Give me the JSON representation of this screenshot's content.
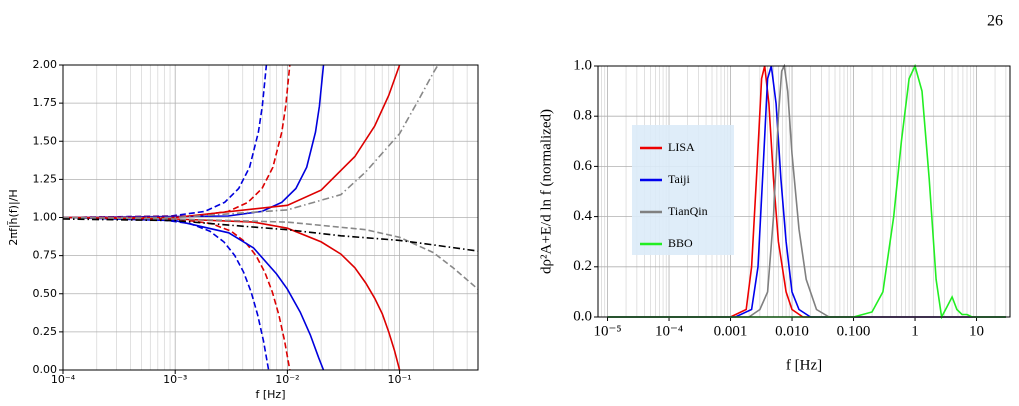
{
  "page_number": "26",
  "chart_data": [
    {
      "type": "line",
      "x_label": "f [Hz]",
      "y_label": "2πf|h̃(f)|/H",
      "log_x": true,
      "grid": "major-minor",
      "xlim": [
        0.0001,
        0.5
      ],
      "ylim": [
        0,
        2
      ],
      "xticks": [
        {
          "value": 0.0001,
          "label": "10⁻⁴"
        },
        {
          "value": 0.001,
          "label": "10⁻³"
        },
        {
          "value": 0.01,
          "label": "10⁻²"
        },
        {
          "value": 0.1,
          "label": "10⁻¹"
        }
      ],
      "yticks": [
        {
          "value": 0,
          "label": "0.00"
        },
        {
          "value": 0.25,
          "label": "0.25"
        },
        {
          "value": 0.5,
          "label": "0.50"
        },
        {
          "value": 0.75,
          "label": "0.75"
        },
        {
          "value": 1,
          "label": "1.00"
        },
        {
          "value": 1.25,
          "label": "1.25"
        },
        {
          "value": 1.5,
          "label": "1.50"
        },
        {
          "value": 1.75,
          "label": "1.75"
        },
        {
          "value": 2,
          "label": "2.00"
        }
      ],
      "series": [
        {
          "color": "#0000dd",
          "linestyle": "dashed",
          "x": [
            0.0001,
            0.00092,
            0.00184,
            0.00276,
            0.00368,
            0.0046,
            0.00552,
            0.00598,
            0.0065
          ],
          "values": [
            1.0,
            1.01,
            1.04,
            1.1,
            1.19,
            1.33,
            1.56,
            1.73,
            2.0
          ]
        },
        {
          "color": "#dd0000",
          "linestyle": "dashed",
          "x": [
            0.0001,
            0.00149,
            0.00297,
            0.00446,
            0.00594,
            0.00743,
            0.00891,
            0.00965,
            0.0105
          ],
          "values": [
            1.0,
            1.01,
            1.04,
            1.1,
            1.19,
            1.33,
            1.56,
            1.73,
            2.0
          ]
        },
        {
          "color": "#0000dd",
          "linestyle": "solid",
          "x": [
            0.0001,
            0.00297,
            0.00594,
            0.00891,
            0.0119,
            0.01485,
            0.0178,
            0.0193,
            0.021
          ],
          "values": [
            1.0,
            1.01,
            1.04,
            1.1,
            1.19,
            1.33,
            1.56,
            1.73,
            2.0
          ]
        },
        {
          "color": "#dd0000",
          "linestyle": "solid",
          "x": [
            0.0001,
            0.001,
            0.01,
            0.02,
            0.04,
            0.06,
            0.08,
            0.1
          ],
          "values": [
            1.0,
            1.0,
            1.08,
            1.18,
            1.4,
            1.6,
            1.8,
            2.0
          ]
        },
        {
          "color": "#888888",
          "linestyle": "dashdot",
          "x": [
            0.0001,
            0.001,
            0.01,
            0.03,
            0.05,
            0.1,
            0.15,
            0.2,
            0.22
          ],
          "values": [
            1.0,
            1.0,
            1.05,
            1.15,
            1.3,
            1.55,
            1.78,
            1.95,
            2.0
          ]
        },
        {
          "color": "#0000dd",
          "linestyle": "dashed",
          "x": [
            0.0001,
            0.00068,
            0.00136,
            0.00204,
            0.00272,
            0.0034,
            0.00408,
            0.00476,
            0.00544,
            0.00612,
            0.0068
          ],
          "values": [
            1.0,
            0.99,
            0.96,
            0.91,
            0.84,
            0.75,
            0.64,
            0.51,
            0.36,
            0.19,
            0.0
          ]
        },
        {
          "color": "#dd0000",
          "linestyle": "dashed",
          "x": [
            0.0001,
            0.00105,
            0.0021,
            0.00315,
            0.0042,
            0.00525,
            0.0063,
            0.00735,
            0.0084,
            0.00945,
            0.0105
          ],
          "values": [
            1.0,
            0.99,
            0.96,
            0.91,
            0.84,
            0.75,
            0.64,
            0.51,
            0.36,
            0.19,
            0.0
          ]
        },
        {
          "color": "#0000dd",
          "linestyle": "solid",
          "x": [
            0.0001,
            0.001,
            0.003,
            0.005,
            0.008,
            0.01,
            0.013,
            0.016,
            0.019,
            0.021
          ],
          "values": [
            1.0,
            0.98,
            0.9,
            0.8,
            0.63,
            0.53,
            0.38,
            0.23,
            0.08,
            0.0
          ]
        },
        {
          "color": "#dd0000",
          "linestyle": "solid",
          "x": [
            0.0001,
            0.001,
            0.005,
            0.01,
            0.02,
            0.03,
            0.04,
            0.05,
            0.06,
            0.07,
            0.08,
            0.09,
            0.1
          ],
          "values": [
            1.0,
            0.99,
            0.97,
            0.93,
            0.84,
            0.76,
            0.67,
            0.57,
            0.47,
            0.37,
            0.25,
            0.13,
            0.0
          ]
        },
        {
          "color": "#888888",
          "linestyle": "dashed",
          "x": [
            0.0001,
            0.001,
            0.01,
            0.05,
            0.1,
            0.2,
            0.3,
            0.5
          ],
          "values": [
            1.0,
            0.99,
            0.97,
            0.92,
            0.87,
            0.77,
            0.67,
            0.53
          ]
        },
        {
          "color": "#000000",
          "linestyle": "dashdot",
          "x": [
            0.0001,
            0.001,
            0.003,
            0.01,
            0.03,
            0.1,
            0.2,
            0.5
          ],
          "values": [
            0.99,
            0.98,
            0.95,
            0.92,
            0.88,
            0.85,
            0.82,
            0.78
          ]
        }
      ]
    },
    {
      "type": "line",
      "x_label": "f [Hz]",
      "y_label": "dρ²A+E/d ln f (normalized)",
      "log_x": true,
      "grid": "major-minor",
      "legend": "left",
      "xlim": [
        7e-06,
        35
      ],
      "ylim": [
        0,
        1
      ],
      "xticks": [
        {
          "value": 1e-05,
          "label": "10⁻⁵"
        },
        {
          "value": 0.0001,
          "label": "10⁻⁴"
        },
        0.001,
        {
          "value": 0.01,
          "label": "0.010"
        },
        {
          "value": 0.1,
          "label": "0.100"
        },
        1,
        10
      ],
      "yticks": [
        {
          "value": 0,
          "label": "0.0"
        },
        0.2,
        0.4,
        0.6,
        0.8,
        {
          "value": 1,
          "label": "1.0"
        }
      ],
      "series": [
        {
          "name": "LISA",
          "color": "#ee0000",
          "linestyle": "solid",
          "x": [
            1e-05,
            0.001,
            0.0018,
            0.0022,
            0.0027,
            0.0032,
            0.0036,
            0.0042,
            0.005,
            0.006,
            0.008,
            0.01,
            0.015,
            30
          ],
          "values": [
            0,
            0,
            0.03,
            0.2,
            0.6,
            0.95,
            1.0,
            0.85,
            0.55,
            0.3,
            0.1,
            0.03,
            0,
            0
          ]
        },
        {
          "name": "Taiji",
          "color": "#0000ee",
          "linestyle": "solid",
          "x": [
            1e-05,
            0.0012,
            0.0022,
            0.0028,
            0.0034,
            0.004,
            0.0046,
            0.0055,
            0.0066,
            0.008,
            0.01,
            0.013,
            0.02,
            30
          ],
          "values": [
            0,
            0,
            0.03,
            0.2,
            0.6,
            0.95,
            1.0,
            0.85,
            0.55,
            0.3,
            0.1,
            0.03,
            0,
            0
          ]
        },
        {
          "name": "TianQin",
          "color": "#808080",
          "linestyle": "solid",
          "x": [
            1e-05,
            0.002,
            0.003,
            0.004,
            0.005,
            0.006,
            0.0068,
            0.0075,
            0.0085,
            0.01,
            0.013,
            0.017,
            0.025,
            0.04,
            30
          ],
          "values": [
            0,
            0,
            0.03,
            0.1,
            0.4,
            0.8,
            0.98,
            1.0,
            0.9,
            0.65,
            0.35,
            0.15,
            0.03,
            0,
            0
          ]
        },
        {
          "name": "BBO",
          "color": "#22ee22",
          "linestyle": "solid",
          "x": [
            1e-05,
            0.1,
            0.2,
            0.3,
            0.45,
            0.6,
            0.8,
            1.0,
            1.3,
            1.7,
            2.2,
            2.7,
            3.3,
            4.0,
            4.8,
            5.8,
            7,
            8.5,
            30
          ],
          "values": [
            0,
            0,
            0.02,
            0.1,
            0.4,
            0.7,
            0.95,
            1.0,
            0.9,
            0.55,
            0.15,
            0,
            0.04,
            0.08,
            0.03,
            0.01,
            0.01,
            0,
            0
          ]
        }
      ]
    }
  ]
}
